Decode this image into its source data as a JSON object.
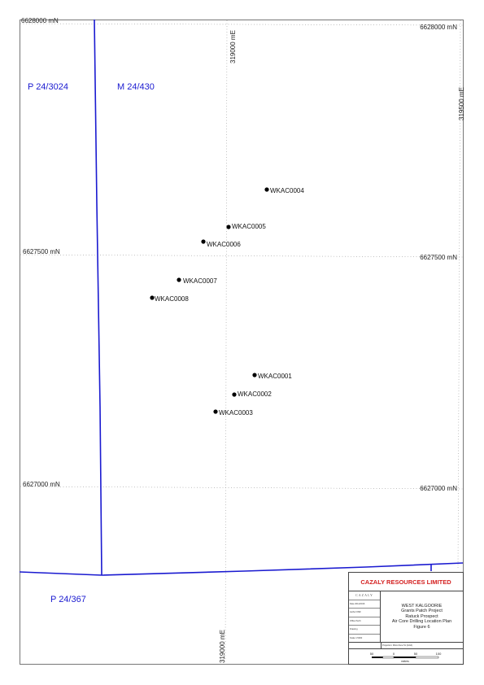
{
  "grid": {
    "northings": [
      "6628000 mN",
      "6627500 mN",
      "6627000 mN"
    ],
    "eastings": [
      "319000 mE",
      "319500 mE"
    ]
  },
  "tenements": [
    "P 24/3024",
    "M 24/430",
    "P 24/367"
  ],
  "drill_holes": [
    {
      "id": "WKAC0004"
    },
    {
      "id": "WKAC0005"
    },
    {
      "id": "WKAC0006"
    },
    {
      "id": "WKAC0007"
    },
    {
      "id": "WKAC0008"
    },
    {
      "id": "WKAC0001"
    },
    {
      "id": "WKAC0002"
    },
    {
      "id": "WKAC0003"
    }
  ],
  "colors": {
    "boundary": "#1a1ad0",
    "company": "#d42020"
  },
  "title_block": {
    "company": "CAZALY RESOURCES LIMITED",
    "logo": "CAZALY",
    "fields": [
      "Date 2011/2016",
      "Author KMF",
      "Office Perth",
      "Drawing",
      "Scale 1:5000"
    ],
    "titles": [
      "WEST KALGOORIE",
      "Grants Patch Project",
      "Ratuck Prospect",
      "Air Core Drilling Location Plan",
      "Figure 6"
    ],
    "projection": "Projection: MGA Zone 51 (GDA)",
    "scale_ticks": [
      "50",
      "0",
      "50",
      "100"
    ],
    "scale_unit": "metres"
  }
}
